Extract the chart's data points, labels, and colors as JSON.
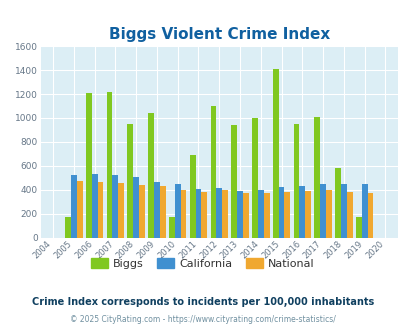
{
  "title": "Biggs Violent Crime Index",
  "years": [
    2004,
    2005,
    2006,
    2007,
    2008,
    2009,
    2010,
    2011,
    2012,
    2013,
    2014,
    2015,
    2016,
    2017,
    2018,
    2019,
    2020
  ],
  "biggs": [
    0,
    170,
    1210,
    1220,
    950,
    1045,
    170,
    690,
    1100,
    945,
    1000,
    1410,
    950,
    1005,
    585,
    170,
    0
  ],
  "california": [
    0,
    525,
    535,
    525,
    505,
    465,
    445,
    410,
    415,
    390,
    395,
    420,
    430,
    450,
    445,
    450,
    0
  ],
  "national": [
    0,
    470,
    465,
    455,
    440,
    430,
    400,
    385,
    395,
    375,
    375,
    385,
    390,
    395,
    385,
    375,
    0
  ],
  "biggs_color": "#80c820",
  "california_color": "#4090d0",
  "national_color": "#f0a830",
  "bg_color": "#dceef5",
  "ylim": [
    0,
    1600
  ],
  "yticks": [
    0,
    200,
    400,
    600,
    800,
    1000,
    1200,
    1400,
    1600
  ],
  "subtitle": "Crime Index corresponds to incidents per 100,000 inhabitants",
  "footer": "© 2025 CityRating.com - https://www.cityrating.com/crime-statistics/",
  "title_color": "#1060a0",
  "subtitle_color": "#104060",
  "footer_color": "#7090a0",
  "bar_width": 0.28,
  "legend_labels": [
    "Biggs",
    "California",
    "National"
  ]
}
